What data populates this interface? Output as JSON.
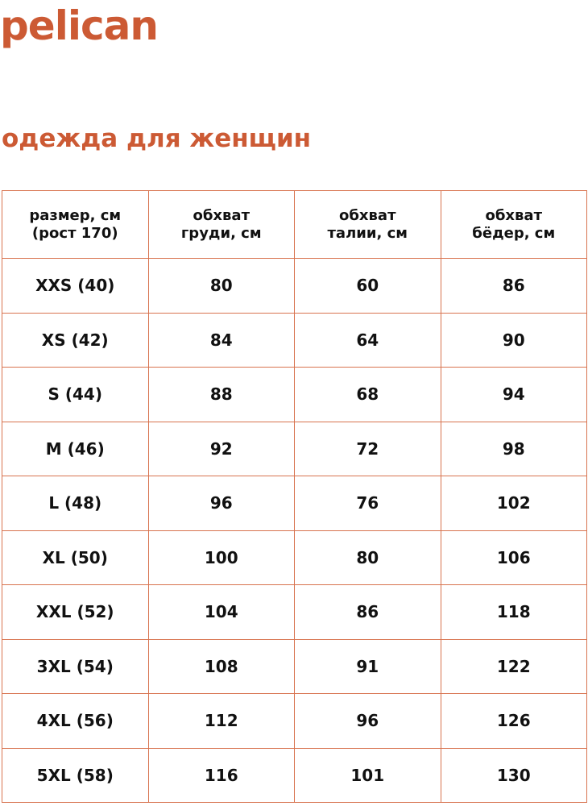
{
  "brand": {
    "logo": "pelican",
    "color": "#cc5a34"
  },
  "title": "одежда для женщин",
  "table": {
    "headers": [
      [
        "размер, см",
        "(рост 170)"
      ],
      [
        "обхват",
        "груди, см"
      ],
      [
        "обхват",
        "талии, см"
      ],
      [
        "обхват",
        "бёдер, см"
      ]
    ],
    "rows": [
      [
        "XXS (40)",
        "80",
        "60",
        "86"
      ],
      [
        "XS (42)",
        "84",
        "64",
        "90"
      ],
      [
        "S (44)",
        "88",
        "68",
        "94"
      ],
      [
        "M (46)",
        "92",
        "72",
        "98"
      ],
      [
        "L (48)",
        "96",
        "76",
        "102"
      ],
      [
        "XL (50)",
        "100",
        "80",
        "106"
      ],
      [
        "XXL (52)",
        "104",
        "86",
        "118"
      ],
      [
        "3XL (54)",
        "108",
        "91",
        "122"
      ],
      [
        "4XL (56)",
        "112",
        "96",
        "126"
      ],
      [
        "5XL (58)",
        "116",
        "101",
        "130"
      ]
    ]
  }
}
